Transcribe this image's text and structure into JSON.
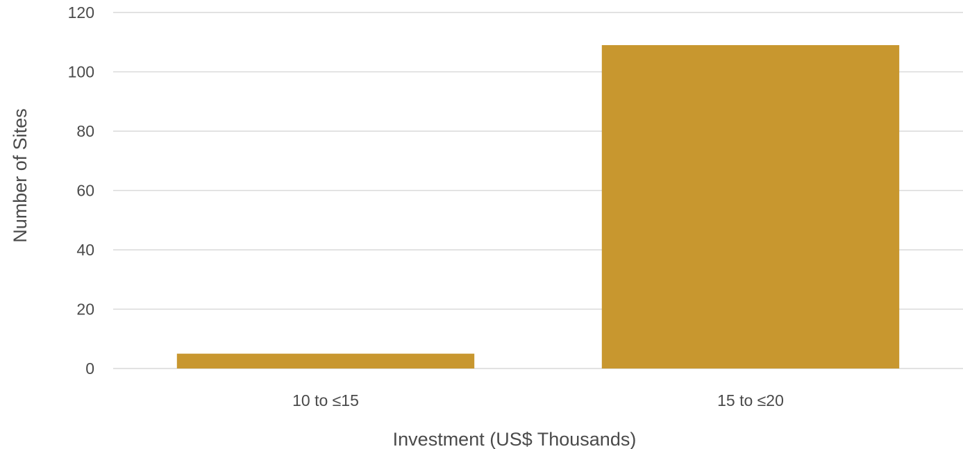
{
  "chart_data": {
    "type": "bar",
    "title": "",
    "xlabel": "Investment (US$ Thousands)",
    "ylabel": "Number of Sites",
    "categories": [
      "10 to ≤15",
      "15 to ≤20"
    ],
    "values": [
      5,
      109
    ],
    "ylim": [
      0,
      120
    ],
    "yticks": [
      0,
      20,
      40,
      60,
      80,
      100,
      120
    ],
    "ytick_labels": [
      "0",
      "20",
      "40",
      "60",
      "80",
      "100",
      "120"
    ],
    "grid": true,
    "legend": "none",
    "bar_color": "#c8972f"
  }
}
